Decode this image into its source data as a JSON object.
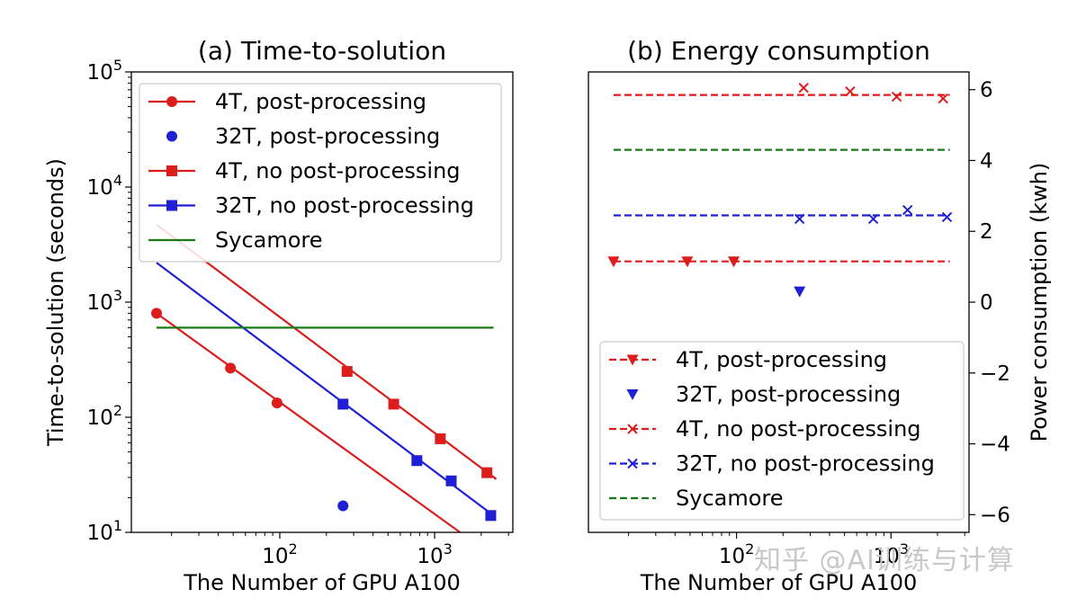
{
  "watermark": "知乎 @AI训练与计算",
  "colors": {
    "red": "#dd1c1c",
    "blue": "#1f1fd6",
    "green": "#1a7a1a"
  },
  "chart_data": [
    {
      "type": "scatter",
      "title": "(a) Time-to-solution",
      "xlabel": "The Number of GPU A100",
      "ylabel": "Time-to-solution (seconds)",
      "xscale": "log",
      "yscale": "log",
      "xlim": [
        11,
        3200
      ],
      "ylim": [
        10,
        100000
      ],
      "xticks": [
        {
          "value": 100,
          "base": "10",
          "exp": "2"
        },
        {
          "value": 1000,
          "base": "10",
          "exp": "3"
        }
      ],
      "yticks": [
        {
          "value": 10,
          "base": "10",
          "exp": "1"
        },
        {
          "value": 100,
          "base": "10",
          "exp": "2"
        },
        {
          "value": 1000,
          "base": "10",
          "exp": "3"
        },
        {
          "value": 10000,
          "base": "10",
          "exp": "4"
        },
        {
          "value": 100000,
          "base": "10",
          "exp": "5"
        }
      ],
      "legend_position": "upper-left",
      "series": [
        {
          "name": "4T, post-processing",
          "color": "#dd1c1c",
          "marker": "circle",
          "line": "solid",
          "x": [
            16,
            48,
            96
          ],
          "y": [
            800,
            267,
            133
          ],
          "fit": {
            "x": [
              16,
              1460
            ],
            "y": [
              800,
              10
            ]
          }
        },
        {
          "name": "32T, post-processing",
          "color": "#1f1fd6",
          "marker": "circle",
          "line": "none",
          "x": [
            256
          ],
          "y": [
            17
          ]
        },
        {
          "name": "4T, no post-processing",
          "color": "#dd1c1c",
          "marker": "square",
          "line": "solid",
          "x": [
            272,
            544,
            1088,
            2176
          ],
          "y": [
            250,
            130,
            65,
            33
          ],
          "fit": {
            "x": [
              16,
              2500
            ],
            "y": [
              4700,
              29
            ]
          }
        },
        {
          "name": "32T, no post-processing",
          "color": "#1f1fd6",
          "marker": "square",
          "line": "solid",
          "x": [
            256,
            768,
            1280,
            2304
          ],
          "y": [
            130,
            42,
            28,
            14
          ],
          "fit": {
            "x": [
              16,
              2400
            ],
            "y": [
              2200,
              14
            ]
          }
        },
        {
          "name": "Sycamore",
          "color": "#1a7a1a",
          "marker": "none",
          "line": "solid",
          "x": [
            16,
            2400
          ],
          "y": [
            600,
            600
          ]
        }
      ]
    },
    {
      "type": "scatter",
      "title": "(b) Energy consumption",
      "xlabel": "The Number of GPU A100",
      "ylabel": "Power consumption (kwh)",
      "xscale": "log",
      "yscale": "linear",
      "xlim": [
        11,
        3200
      ],
      "ylim": [
        -6.5,
        6.5
      ],
      "xticks": [
        {
          "value": 100,
          "base": "10",
          "exp": "2"
        },
        {
          "value": 1000,
          "base": "10",
          "exp": "3"
        }
      ],
      "yticks": [
        {
          "value": 6,
          "label": "6"
        },
        {
          "value": 4,
          "label": "4"
        },
        {
          "value": 2,
          "label": "2"
        },
        {
          "value": 0,
          "label": "0"
        },
        {
          "value": -2,
          "label": "−2"
        },
        {
          "value": -4,
          "label": "−4"
        },
        {
          "value": -6,
          "label": "−6"
        }
      ],
      "legend_position": "lower-left",
      "series": [
        {
          "name": "4T, post-processing",
          "color": "#dd1c1c",
          "marker": "triangle-down",
          "line": "dashed",
          "x": [
            16,
            48,
            96
          ],
          "y": [
            1.15,
            1.15,
            1.15
          ],
          "ref_line": {
            "x": [
              16,
              2400
            ],
            "y": [
              1.15,
              1.15
            ]
          }
        },
        {
          "name": "32T, post-processing",
          "color": "#1f1fd6",
          "marker": "triangle-down",
          "line": "none",
          "x": [
            256
          ],
          "y": [
            0.3
          ]
        },
        {
          "name": "4T, no post-processing",
          "color": "#dd1c1c",
          "marker": "x",
          "line": "dashed",
          "x": [
            272,
            544,
            1088,
            2176
          ],
          "y": [
            6.05,
            5.95,
            5.8,
            5.75
          ],
          "ref_line": {
            "x": [
              16,
              2400
            ],
            "y": [
              5.85,
              5.85
            ]
          }
        },
        {
          "name": "32T, no post-processing",
          "color": "#1f1fd6",
          "marker": "x",
          "line": "dashed",
          "x": [
            256,
            768,
            1280,
            2304
          ],
          "y": [
            2.35,
            2.35,
            2.6,
            2.4
          ],
          "ref_line": {
            "x": [
              16,
              2400
            ],
            "y": [
              2.45,
              2.45
            ]
          }
        },
        {
          "name": "Sycamore",
          "color": "#1a7a1a",
          "marker": "none",
          "line": "dashed",
          "x": [
            16,
            2400
          ],
          "y": [
            4.3,
            4.3
          ]
        }
      ]
    }
  ]
}
